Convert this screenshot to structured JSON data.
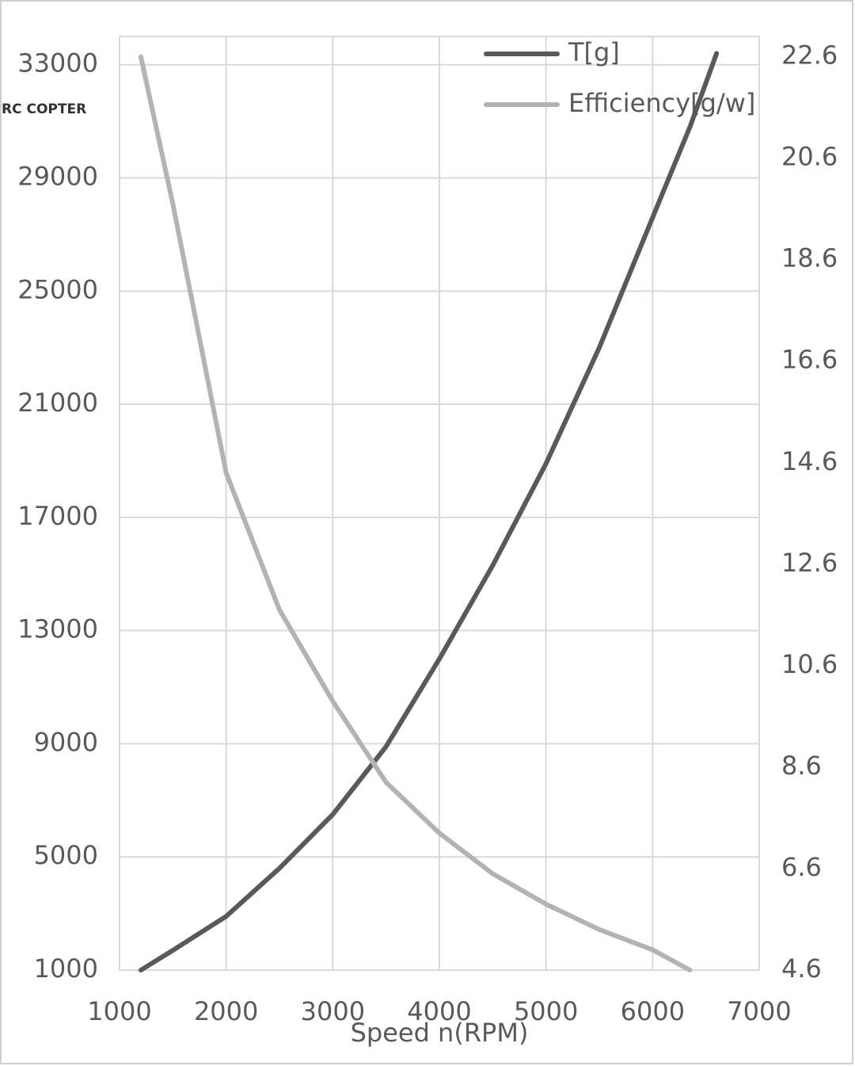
{
  "chart_data": {
    "type": "line",
    "watermark": "RC COPTER",
    "x_label": "Speed n(RPM)",
    "x": [
      1200,
      1500,
      2000,
      2500,
      3000,
      3500,
      4000,
      4500,
      5000,
      5500,
      6000,
      6350,
      6600
    ],
    "series": [
      {
        "name": "T[g]",
        "color": "#595959",
        "axis": "y",
        "values": [
          1000,
          1700,
          2900,
          4600,
          6500,
          8900,
          12000,
          15300,
          18900,
          23000,
          27600,
          30800,
          33400
        ]
      },
      {
        "name": "Efficiency[g/w]",
        "color": "#b3b3b3",
        "axis": "y2",
        "values": [
          22.6,
          19.7,
          14.4,
          11.7,
          9.9,
          8.3,
          7.3,
          6.5,
          5.9,
          5.4,
          5.0,
          4.6,
          null
        ]
      }
    ],
    "xlim": [
      1000,
      7000
    ],
    "xticks": [
      1000,
      2000,
      3000,
      4000,
      5000,
      6000,
      7000
    ],
    "ylim": [
      1000,
      34000
    ],
    "yticks": [
      1000,
      5000,
      9000,
      13000,
      17000,
      21000,
      25000,
      29000,
      33000
    ],
    "y2lim": [
      4.6,
      23
    ],
    "y2ticks": [
      4.6,
      6.6,
      8.6,
      10.6,
      12.6,
      14.6,
      16.6,
      18.6,
      20.6,
      22.6
    ],
    "grid": true,
    "legend": "top-right"
  }
}
